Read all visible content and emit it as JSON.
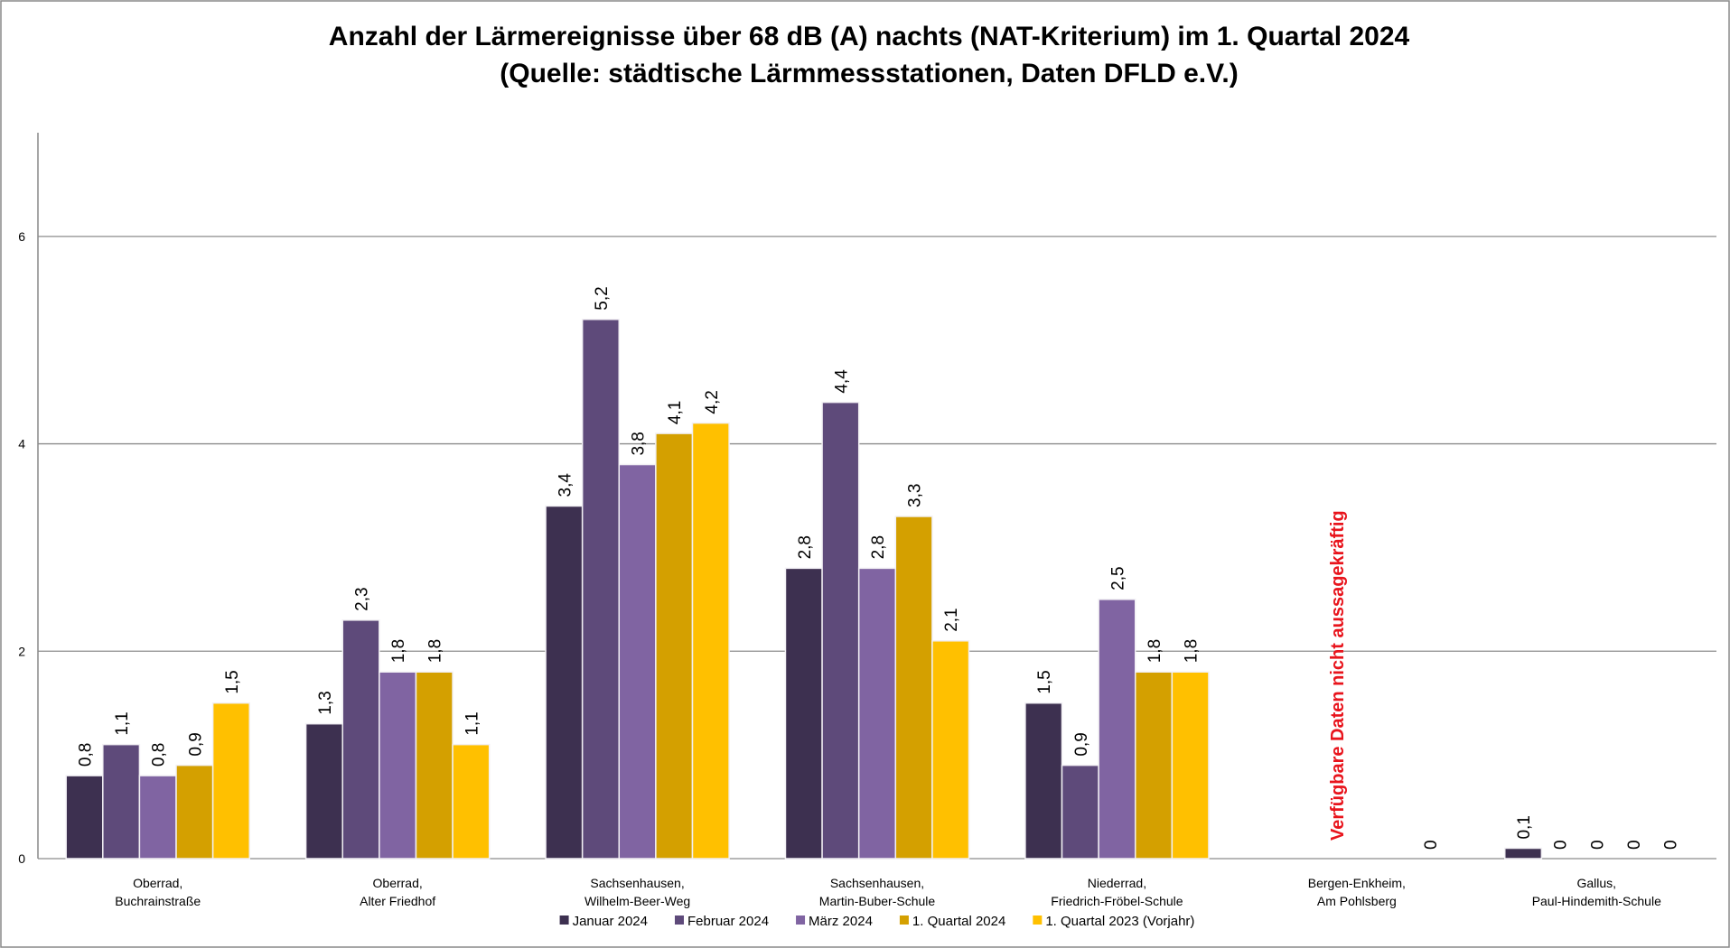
{
  "chart_data": {
    "type": "bar",
    "title": [
      "Anzahl der Lärmereignisse über 68 dB (A) nachts (NAT-Kriterium) im 1. Quartal 2024",
      "(Quelle: städtische Lärmmessstationen, Daten DFLD e.V.)"
    ],
    "categories": [
      [
        "Oberrad,",
        "Buchrainstraße"
      ],
      [
        "Oberrad,",
        "Alter Friedhof"
      ],
      [
        "Sachsenhausen,",
        "Wilhelm-Beer-Weg"
      ],
      [
        "Sachsenhausen,",
        "Martin-Buber-Schule"
      ],
      [
        "Niederrad,",
        "Friedrich-Fröbel-Schule"
      ],
      [
        "Bergen-Enkheim,",
        "Am Pohlsberg"
      ],
      [
        "Gallus,",
        "Paul-Hindemith-Schule"
      ]
    ],
    "series": [
      {
        "name": "Januar 2024",
        "color": "#3d3050",
        "values": [
          0.8,
          1.3,
          3.4,
          2.8,
          1.5,
          null,
          0.1
        ],
        "value_labels": [
          "0,8",
          "1,3",
          "3,4",
          "2,8",
          "1,5",
          null,
          "0,1"
        ]
      },
      {
        "name": "Februar 2024",
        "color": "#5e4a7a",
        "values": [
          1.1,
          2.3,
          5.2,
          4.4,
          0.9,
          null,
          0
        ],
        "value_labels": [
          "1,1",
          "2,3",
          "5,2",
          "4,4",
          "0,9",
          null,
          "0"
        ]
      },
      {
        "name": "März 2024",
        "color": "#8064a2",
        "values": [
          0.8,
          1.8,
          3.8,
          2.8,
          2.5,
          null,
          0
        ],
        "value_labels": [
          "0,8",
          "1,8",
          "3,8",
          "2,8",
          "2,5",
          null,
          "0"
        ]
      },
      {
        "name": "1. Quartal 2024",
        "color": "#d4a000",
        "values": [
          0.9,
          1.8,
          4.1,
          3.3,
          1.8,
          null,
          0
        ],
        "value_labels": [
          "0,9",
          "1,8",
          "4,1",
          "3,3",
          "1,8",
          null,
          "0"
        ]
      },
      {
        "name": "1. Quartal 2023 (Vorjahr)",
        "color": "#ffc000",
        "values": [
          1.5,
          1.1,
          4.2,
          2.1,
          1.8,
          0,
          0
        ],
        "value_labels": [
          "1,5",
          "1,1",
          "4,2",
          "2,1",
          "1,8",
          "0",
          "0"
        ]
      }
    ],
    "annotation": {
      "text": "Verfügbare Daten nicht aussagekräftig",
      "category": 5,
      "color": "#e8141c"
    },
    "ylim": [
      0,
      7
    ],
    "yticks": [
      0,
      2,
      4,
      6
    ],
    "grid": true,
    "legend": "bottom"
  }
}
